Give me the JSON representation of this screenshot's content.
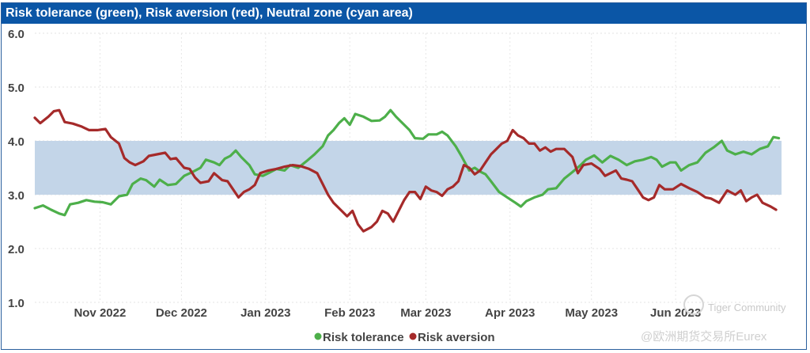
{
  "chart_data": {
    "type": "line",
    "title": "Risk tolerance (green), Risk aversion (red), Neutral zone (cyan area)",
    "xlabel": "",
    "ylabel": "",
    "ylim": [
      1.0,
      6.0
    ],
    "yticks": [
      "1.0",
      "2.0",
      "3.0",
      "4.0",
      "5.0",
      "6.0"
    ],
    "neutral_zone": {
      "from": 3.0,
      "to": 4.0,
      "color": "#c3d5e8"
    },
    "x_range_days": [
      0,
      275
    ],
    "x_ticks": [
      {
        "day": 24,
        "label": "Nov 2022"
      },
      {
        "day": 54,
        "label": "Dec 2022"
      },
      {
        "day": 85,
        "label": "Jan 2023"
      },
      {
        "day": 116,
        "label": "Feb 2023"
      },
      {
        "day": 144,
        "label": "Mar 2023"
      },
      {
        "day": 175,
        "label": "Apr 2023"
      },
      {
        "day": 205,
        "label": "May 2023"
      },
      {
        "day": 236,
        "label": "Jun 2023"
      }
    ],
    "series": [
      {
        "name": "Risk tolerance",
        "color": "#4daf4a",
        "points": [
          [
            0,
            2.75
          ],
          [
            3,
            2.8
          ],
          [
            6,
            2.72
          ],
          [
            9,
            2.65
          ],
          [
            11,
            2.62
          ],
          [
            13,
            2.82
          ],
          [
            16,
            2.85
          ],
          [
            19,
            2.9
          ],
          [
            22,
            2.87
          ],
          [
            25,
            2.86
          ],
          [
            28,
            2.82
          ],
          [
            31,
            2.97
          ],
          [
            34,
            3.0
          ],
          [
            36,
            3.2
          ],
          [
            39,
            3.3
          ],
          [
            41,
            3.27
          ],
          [
            44,
            3.15
          ],
          [
            46,
            3.28
          ],
          [
            49,
            3.18
          ],
          [
            52,
            3.2
          ],
          [
            55,
            3.35
          ],
          [
            58,
            3.42
          ],
          [
            61,
            3.5
          ],
          [
            63,
            3.65
          ],
          [
            66,
            3.6
          ],
          [
            68,
            3.55
          ],
          [
            70,
            3.67
          ],
          [
            72,
            3.72
          ],
          [
            74,
            3.82
          ],
          [
            76,
            3.7
          ],
          [
            79,
            3.55
          ],
          [
            81,
            3.38
          ],
          [
            84,
            3.35
          ],
          [
            86,
            3.4
          ],
          [
            89,
            3.48
          ],
          [
            92,
            3.45
          ],
          [
            94,
            3.55
          ],
          [
            97,
            3.5
          ],
          [
            100,
            3.62
          ],
          [
            103,
            3.75
          ],
          [
            106,
            3.9
          ],
          [
            108,
            4.1
          ],
          [
            110,
            4.2
          ],
          [
            112,
            4.33
          ],
          [
            114,
            4.42
          ],
          [
            116,
            4.3
          ],
          [
            118,
            4.5
          ],
          [
            121,
            4.45
          ],
          [
            124,
            4.37
          ],
          [
            127,
            4.38
          ],
          [
            129,
            4.45
          ],
          [
            131,
            4.57
          ],
          [
            133,
            4.45
          ],
          [
            136,
            4.3
          ],
          [
            138,
            4.2
          ],
          [
            140,
            4.05
          ],
          [
            143,
            4.04
          ],
          [
            145,
            4.12
          ],
          [
            148,
            4.12
          ],
          [
            150,
            4.17
          ],
          [
            152,
            4.1
          ],
          [
            155,
            3.9
          ],
          [
            157,
            3.73
          ],
          [
            160,
            3.45
          ],
          [
            162,
            3.5
          ],
          [
            164,
            3.43
          ],
          [
            166,
            3.38
          ],
          [
            168,
            3.25
          ],
          [
            171,
            3.05
          ],
          [
            174,
            2.95
          ],
          [
            177,
            2.85
          ],
          [
            179,
            2.78
          ],
          [
            181,
            2.88
          ],
          [
            184,
            2.95
          ],
          [
            187,
            3.0
          ],
          [
            189,
            3.1
          ],
          [
            192,
            3.12
          ],
          [
            195,
            3.3
          ],
          [
            198,
            3.42
          ],
          [
            201,
            3.55
          ],
          [
            203,
            3.65
          ],
          [
            206,
            3.73
          ],
          [
            209,
            3.6
          ],
          [
            212,
            3.72
          ],
          [
            215,
            3.65
          ],
          [
            218,
            3.55
          ],
          [
            221,
            3.62
          ],
          [
            224,
            3.65
          ],
          [
            227,
            3.7
          ],
          [
            229,
            3.65
          ],
          [
            231,
            3.52
          ],
          [
            234,
            3.6
          ],
          [
            236,
            3.6
          ],
          [
            238,
            3.45
          ],
          [
            241,
            3.55
          ],
          [
            244,
            3.6
          ],
          [
            247,
            3.78
          ],
          [
            250,
            3.88
          ],
          [
            253,
            4.0
          ],
          [
            255,
            3.82
          ],
          [
            258,
            3.75
          ],
          [
            261,
            3.8
          ],
          [
            264,
            3.75
          ],
          [
            267,
            3.85
          ],
          [
            270,
            3.9
          ],
          [
            272,
            4.07
          ],
          [
            274,
            4.05
          ]
        ]
      },
      {
        "name": "Risk aversion",
        "color": "#a52a2a",
        "points": [
          [
            0,
            4.43
          ],
          [
            2,
            4.33
          ],
          [
            5,
            4.45
          ],
          [
            7,
            4.55
          ],
          [
            9,
            4.57
          ],
          [
            11,
            4.35
          ],
          [
            14,
            4.32
          ],
          [
            17,
            4.27
          ],
          [
            20,
            4.2
          ],
          [
            23,
            4.2
          ],
          [
            26,
            4.22
          ],
          [
            28,
            4.07
          ],
          [
            31,
            3.95
          ],
          [
            33,
            3.68
          ],
          [
            35,
            3.6
          ],
          [
            37,
            3.55
          ],
          [
            40,
            3.62
          ],
          [
            42,
            3.72
          ],
          [
            45,
            3.75
          ],
          [
            48,
            3.78
          ],
          [
            50,
            3.66
          ],
          [
            52,
            3.68
          ],
          [
            55,
            3.5
          ],
          [
            57,
            3.48
          ],
          [
            59,
            3.32
          ],
          [
            61,
            3.22
          ],
          [
            64,
            3.25
          ],
          [
            66,
            3.4
          ],
          [
            69,
            3.27
          ],
          [
            71,
            3.25
          ],
          [
            73,
            3.1
          ],
          [
            75,
            2.95
          ],
          [
            77,
            3.05
          ],
          [
            79,
            3.1
          ],
          [
            81,
            3.18
          ],
          [
            83,
            3.4
          ],
          [
            86,
            3.45
          ],
          [
            89,
            3.48
          ],
          [
            92,
            3.52
          ],
          [
            95,
            3.55
          ],
          [
            98,
            3.53
          ],
          [
            101,
            3.48
          ],
          [
            104,
            3.4
          ],
          [
            106,
            3.2
          ],
          [
            108,
            3.0
          ],
          [
            110,
            2.85
          ],
          [
            112,
            2.75
          ],
          [
            115,
            2.6
          ],
          [
            117,
            2.7
          ],
          [
            119,
            2.45
          ],
          [
            121,
            2.32
          ],
          [
            124,
            2.4
          ],
          [
            126,
            2.5
          ],
          [
            128,
            2.7
          ],
          [
            130,
            2.65
          ],
          [
            132,
            2.5
          ],
          [
            134,
            2.7
          ],
          [
            136,
            2.9
          ],
          [
            138,
            3.05
          ],
          [
            140,
            3.05
          ],
          [
            142,
            2.92
          ],
          [
            144,
            3.15
          ],
          [
            146,
            3.08
          ],
          [
            148,
            3.05
          ],
          [
            150,
            2.98
          ],
          [
            152,
            3.1
          ],
          [
            154,
            3.15
          ],
          [
            156,
            3.25
          ],
          [
            158,
            3.55
          ],
          [
            160,
            3.5
          ],
          [
            162,
            3.38
          ],
          [
            164,
            3.45
          ],
          [
            166,
            3.6
          ],
          [
            168,
            3.75
          ],
          [
            170,
            3.85
          ],
          [
            172,
            3.95
          ],
          [
            174,
            4.0
          ],
          [
            176,
            4.2
          ],
          [
            178,
            4.1
          ],
          [
            180,
            4.05
          ],
          [
            182,
            3.95
          ],
          [
            184,
            3.95
          ],
          [
            186,
            3.82
          ],
          [
            188,
            3.88
          ],
          [
            190,
            3.8
          ],
          [
            192,
            3.85
          ],
          [
            195,
            3.85
          ],
          [
            198,
            3.7
          ],
          [
            200,
            3.4
          ],
          [
            202,
            3.55
          ],
          [
            205,
            3.58
          ],
          [
            208,
            3.48
          ],
          [
            210,
            3.35
          ],
          [
            212,
            3.4
          ],
          [
            214,
            3.45
          ],
          [
            216,
            3.3
          ],
          [
            218,
            3.28
          ],
          [
            220,
            3.25
          ],
          [
            222,
            3.1
          ],
          [
            224,
            2.95
          ],
          [
            226,
            2.9
          ],
          [
            228,
            2.95
          ],
          [
            230,
            3.18
          ],
          [
            232,
            3.1
          ],
          [
            235,
            3.1
          ],
          [
            238,
            3.2
          ],
          [
            241,
            3.12
          ],
          [
            244,
            3.05
          ],
          [
            247,
            2.95
          ],
          [
            249,
            2.93
          ],
          [
            252,
            2.85
          ],
          [
            255,
            3.08
          ],
          [
            258,
            3.0
          ],
          [
            260,
            3.08
          ],
          [
            262,
            2.88
          ],
          [
            264,
            2.95
          ],
          [
            266,
            3.0
          ],
          [
            268,
            2.85
          ],
          [
            271,
            2.78
          ],
          [
            273,
            2.72
          ]
        ]
      }
    ],
    "legend_position": "bottom-center"
  },
  "watermark": {
    "line1": "Tiger Community",
    "line2": "@欧洲期货交易所Eurex"
  }
}
